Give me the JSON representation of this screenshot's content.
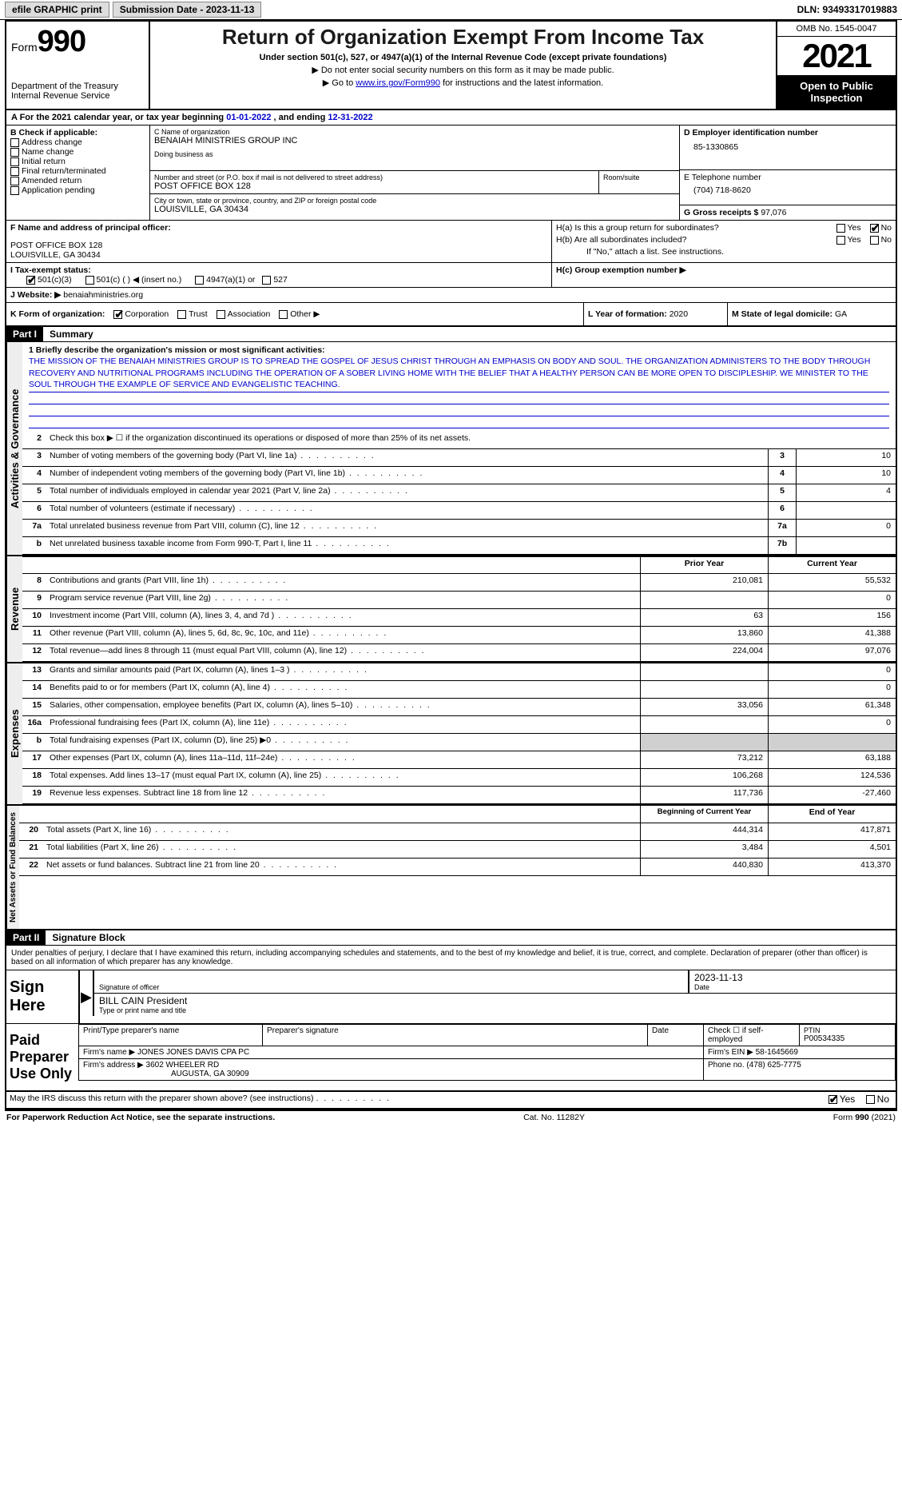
{
  "topbar": {
    "efile_label": "efile GRAPHIC print",
    "submission_label": "Submission Date - 2023-11-13",
    "dln": "DLN: 93493317019883"
  },
  "header": {
    "form_prefix": "Form",
    "form_number": "990",
    "dept": "Department of the Treasury",
    "irs": "Internal Revenue Service",
    "title": "Return of Organization Exempt From Income Tax",
    "subtitle": "Under section 501(c), 527, or 4947(a)(1) of the Internal Revenue Code (except private foundations)",
    "note1": "▶ Do not enter social security numbers on this form as it may be made public.",
    "note2_pre": "▶ Go to ",
    "note2_link": "www.irs.gov/Form990",
    "note2_post": " for instructions and the latest information.",
    "omb": "OMB No. 1545-0047",
    "year": "2021",
    "open_public": "Open to Public Inspection"
  },
  "period": {
    "label_a": "A For the 2021 calendar year, or tax year beginning ",
    "begin": "01-01-2022",
    "mid": "   , and ending ",
    "end": "12-31-2022"
  },
  "boxB": {
    "label": "B Check if applicable:",
    "items": [
      "Address change",
      "Name change",
      "Initial return",
      "Final return/terminated",
      "Amended return",
      "Application pending"
    ]
  },
  "boxC": {
    "name_label": "C Name of organization",
    "name": "BENAIAH MINISTRIES GROUP INC",
    "dba_label": "Doing business as",
    "street_label": "Number and street (or P.O. box if mail is not delivered to street address)",
    "street": "POST OFFICE BOX 128",
    "room_label": "Room/suite",
    "city_label": "City or town, state or province, country, and ZIP or foreign postal code",
    "city": "LOUISVILLE, GA  30434"
  },
  "boxD": {
    "label": "D Employer identification number",
    "value": "85-1330865"
  },
  "boxE": {
    "label": "E Telephone number",
    "value": "(704) 718-8620"
  },
  "boxG": {
    "label": "G Gross receipts $",
    "value": "97,076"
  },
  "boxF": {
    "label": "F Name and address of principal officer:",
    "line1": "POST OFFICE BOX 128",
    "line2": "LOUISVILLE, GA  30434"
  },
  "boxH": {
    "ha_label": "H(a)  Is this a group return for subordinates?",
    "hb_label": "H(b)  Are all subordinates included?",
    "hb_note": "If \"No,\" attach a list. See instructions.",
    "hc_label": "H(c)  Group exemption number ▶",
    "yes": "Yes",
    "no": "No"
  },
  "boxI": {
    "label": "I   Tax-exempt status:",
    "opts": [
      "501(c)(3)",
      "501(c) (  ) ◀ (insert no.)",
      "4947(a)(1) or",
      "527"
    ]
  },
  "boxJ": {
    "label": "J   Website: ▶",
    "value": "benaiahministries.org"
  },
  "boxK": {
    "label": "K Form of organization:",
    "opts": [
      "Corporation",
      "Trust",
      "Association",
      "Other ▶"
    ]
  },
  "boxL": {
    "label": "L Year of formation:",
    "value": "2020"
  },
  "boxM": {
    "label": "M State of legal domicile:",
    "value": "GA"
  },
  "partI": {
    "part": "Part I",
    "title": "Summary",
    "line1_label": "1  Briefly describe the organization's mission or most significant activities:",
    "mission": "THE MISSION OF THE BENAIAH MINISTRIES GROUP IS TO SPREAD THE GOSPEL OF JESUS CHRIST THROUGH AN EMPHASIS ON BODY AND SOUL. THE ORGANIZATION ADMINISTERS TO THE BODY THROUGH RECOVERY AND NUTRITIONAL PROGRAMS INCLUDING THE OPERATION OF A SOBER LIVING HOME WITH THE BELIEF THAT A HEALTHY PERSON CAN BE MORE OPEN TO DISCIPLESHIP. WE MINISTER TO THE SOUL THROUGH THE EXAMPLE OF SERVICE AND EVANGELISTIC TEACHING.",
    "line2": "Check this box ▶ ☐  if the organization discontinued its operations or disposed of more than 25% of its net assets.",
    "tabs": {
      "activities": "Activities & Governance",
      "revenue": "Revenue",
      "expenses": "Expenses",
      "netassets": "Net Assets or Fund Balances"
    },
    "col_prior": "Prior Year",
    "col_current": "Current Year",
    "col_begin": "Beginning of Current Year",
    "col_end": "End of Year",
    "rows_gov": [
      {
        "n": "3",
        "t": "Number of voting members of the governing body (Part VI, line 1a)",
        "box": "3",
        "v": "10"
      },
      {
        "n": "4",
        "t": "Number of independent voting members of the governing body (Part VI, line 1b)",
        "box": "4",
        "v": "10"
      },
      {
        "n": "5",
        "t": "Total number of individuals employed in calendar year 2021 (Part V, line 2a)",
        "box": "5",
        "v": "4"
      },
      {
        "n": "6",
        "t": "Total number of volunteers (estimate if necessary)",
        "box": "6",
        "v": ""
      },
      {
        "n": "7a",
        "t": "Total unrelated business revenue from Part VIII, column (C), line 12",
        "box": "7a",
        "v": "0"
      },
      {
        "n": "b",
        "t": "Net unrelated business taxable income from Form 990-T, Part I, line 11",
        "box": "7b",
        "v": ""
      }
    ],
    "rows_rev": [
      {
        "n": "8",
        "t": "Contributions and grants (Part VIII, line 1h)",
        "p": "210,081",
        "c": "55,532"
      },
      {
        "n": "9",
        "t": "Program service revenue (Part VIII, line 2g)",
        "p": "",
        "c": "0"
      },
      {
        "n": "10",
        "t": "Investment income (Part VIII, column (A), lines 3, 4, and 7d )",
        "p": "63",
        "c": "156"
      },
      {
        "n": "11",
        "t": "Other revenue (Part VIII, column (A), lines 5, 6d, 8c, 9c, 10c, and 11e)",
        "p": "13,860",
        "c": "41,388"
      },
      {
        "n": "12",
        "t": "Total revenue—add lines 8 through 11 (must equal Part VIII, column (A), line 12)",
        "p": "224,004",
        "c": "97,076"
      }
    ],
    "rows_exp": [
      {
        "n": "13",
        "t": "Grants and similar amounts paid (Part IX, column (A), lines 1–3 )",
        "p": "",
        "c": "0"
      },
      {
        "n": "14",
        "t": "Benefits paid to or for members (Part IX, column (A), line 4)",
        "p": "",
        "c": "0"
      },
      {
        "n": "15",
        "t": "Salaries, other compensation, employee benefits (Part IX, column (A), lines 5–10)",
        "p": "33,056",
        "c": "61,348"
      },
      {
        "n": "16a",
        "t": "Professional fundraising fees (Part IX, column (A), line 11e)",
        "p": "",
        "c": "0"
      },
      {
        "n": "b",
        "t": "Total fundraising expenses (Part IX, column (D), line 25) ▶0",
        "p": "shade",
        "c": "shade"
      },
      {
        "n": "17",
        "t": "Other expenses (Part IX, column (A), lines 11a–11d, 11f–24e)",
        "p": "73,212",
        "c": "63,188"
      },
      {
        "n": "18",
        "t": "Total expenses. Add lines 13–17 (must equal Part IX, column (A), line 25)",
        "p": "106,268",
        "c": "124,536"
      },
      {
        "n": "19",
        "t": "Revenue less expenses. Subtract line 18 from line 12",
        "p": "117,736",
        "c": "-27,460"
      }
    ],
    "rows_net": [
      {
        "n": "20",
        "t": "Total assets (Part X, line 16)",
        "p": "444,314",
        "c": "417,871"
      },
      {
        "n": "21",
        "t": "Total liabilities (Part X, line 26)",
        "p": "3,484",
        "c": "4,501"
      },
      {
        "n": "22",
        "t": "Net assets or fund balances. Subtract line 21 from line 20",
        "p": "440,830",
        "c": "413,370"
      }
    ]
  },
  "partII": {
    "part": "Part II",
    "title": "Signature Block",
    "declaration": "Under penalties of perjury, I declare that I have examined this return, including accompanying schedules and statements, and to the best of my knowledge and belief, it is true, correct, and complete. Declaration of preparer (other than officer) is based on all information of which preparer has any knowledge.",
    "sign_here": "Sign Here",
    "sig_officer": "Signature of officer",
    "sig_date": "2023-11-13",
    "date_label": "Date",
    "name_title": "BILL CAIN  President",
    "name_title_label": "Type or print name and title",
    "paid": "Paid Preparer Use Only",
    "prep_name_label": "Print/Type preparer's name",
    "prep_sig_label": "Preparer's signature",
    "prep_date_label": "Date",
    "check_self": "Check ☐ if self-employed",
    "ptin_label": "PTIN",
    "ptin": "P00534335",
    "firm_name_label": "Firm's name    ▶",
    "firm_name": "JONES JONES DAVIS CPA PC",
    "firm_ein_label": "Firm's EIN ▶",
    "firm_ein": "58-1645669",
    "firm_addr_label": "Firm's address ▶",
    "firm_addr1": "3602 WHEELER RD",
    "firm_addr2": "AUGUSTA, GA  30909",
    "phone_label": "Phone no.",
    "phone": "(478) 625-7775",
    "discuss": "May the IRS discuss this return with the preparer shown above? (see instructions)",
    "yes": "Yes",
    "no": "No"
  },
  "footer": {
    "pra": "For Paperwork Reduction Act Notice, see the separate instructions.",
    "cat": "Cat. No. 11282Y",
    "form": "Form 990 (2021)"
  }
}
